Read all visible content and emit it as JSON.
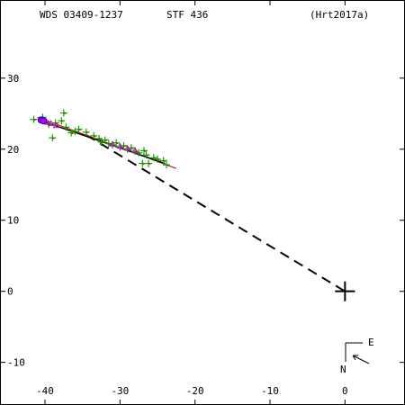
{
  "header": {
    "wds_id": "WDS 03409-1237",
    "discoverer": "STF 436",
    "reference": "(Hrt2017a)"
  },
  "compass": {
    "east_label": "E",
    "north_label": "N",
    "icon": "motion-direction-arrow-icon"
  },
  "colors": {
    "axis": "#000000",
    "measure_micrometer": "#00aa00",
    "measure_interferometric": "#cc00cc",
    "residual": "#0000ff",
    "orbit": "#cc0000",
    "path": "#000000"
  },
  "chart_data": {
    "type": "scatter",
    "xlim": [
      -46,
      8
    ],
    "ylim": [
      -16,
      41
    ],
    "x_ticks": [
      -40,
      -30,
      -20,
      -10,
      0
    ],
    "y_ticks": [
      30,
      20,
      10,
      0,
      -10
    ],
    "x_tick_labels": [
      "-40",
      "-30",
      "-20",
      "-10",
      "0"
    ],
    "y_tick_labels": [
      "30",
      "20",
      "10",
      "0",
      "-10"
    ],
    "grid": false,
    "primary": [
      0,
      0
    ],
    "path_line": [
      [
        -34.5,
        22.0
      ],
      [
        0,
        0
      ]
    ],
    "orbit_segment": [
      [
        -41,
        24.5
      ],
      [
        -22.5,
        17.3
      ]
    ],
    "fit_segment": [
      [
        -40.5,
        24.0
      ],
      [
        -24,
        18.0
      ]
    ],
    "series": [
      {
        "marker": "plus",
        "points": [
          [
            -41.5,
            24.2
          ],
          [
            -40.3,
            24.5
          ],
          [
            -39.5,
            23.5
          ],
          [
            -39.0,
            21.6
          ],
          [
            -38.6,
            23.7
          ],
          [
            -37.8,
            24.0
          ],
          [
            -37.5,
            25.1
          ],
          [
            -37.2,
            23.1
          ],
          [
            -36.5,
            22.3
          ],
          [
            -36.0,
            22.5
          ],
          [
            -35.5,
            22.8
          ],
          [
            -34.5,
            22.4
          ],
          [
            -33.5,
            21.9
          ],
          [
            -32.8,
            21.5
          ],
          [
            -32.5,
            21.0
          ],
          [
            -32.0,
            21.3
          ],
          [
            -31.5,
            20.8
          ],
          [
            -31.0,
            20.6
          ],
          [
            -30.5,
            20.9
          ],
          [
            -30.0,
            20.3
          ],
          [
            -29.5,
            20.5
          ],
          [
            -29.0,
            20.0
          ],
          [
            -28.5,
            20.2
          ],
          [
            -28.0,
            19.7
          ],
          [
            -27.5,
            19.5
          ],
          [
            -27.0,
            18.0
          ],
          [
            -26.8,
            19.8
          ],
          [
            -26.5,
            19.2
          ],
          [
            -26.2,
            18.0
          ],
          [
            -25.5,
            18.8
          ],
          [
            -25.0,
            18.6
          ],
          [
            -24.2,
            18.4
          ],
          [
            -23.8,
            17.8
          ]
        ]
      },
      {
        "marker": "triangle",
        "points": [
          [
            -39.8,
            23.8
          ],
          [
            -39.2,
            23.6
          ],
          [
            -38.5,
            23.3
          ],
          [
            -31.0,
            20.7
          ],
          [
            -30.0,
            20.4
          ],
          [
            -29.0,
            20.1
          ],
          [
            -28.0,
            19.8
          ]
        ]
      },
      {
        "marker": "circle",
        "points": [
          [
            -40.5,
            24.1
          ],
          [
            -40.2,
            24.0
          ]
        ]
      }
    ]
  }
}
